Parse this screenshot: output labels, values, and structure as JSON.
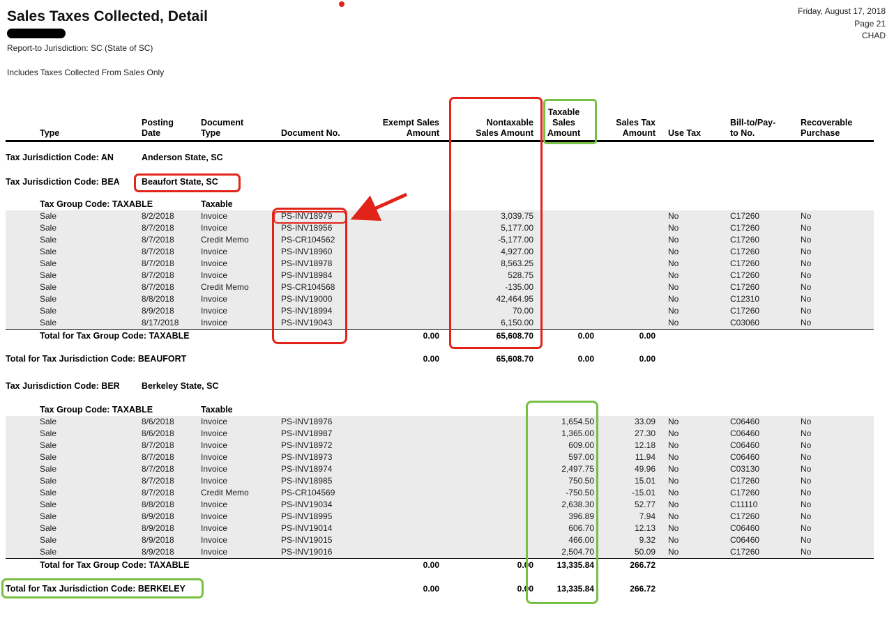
{
  "meta": {
    "title": "Sales Taxes Collected, Detail",
    "date": "Friday, August 17, 2018",
    "page": "Page 21",
    "user": "CHAD",
    "report_to_jurisdiction": "Report-to Jurisdiction: SC  (State of SC)",
    "includes_note": "Includes Taxes Collected From Sales Only"
  },
  "columns": [
    {
      "key": "type",
      "lines": [
        "Type"
      ],
      "align": "left"
    },
    {
      "key": "posting_date",
      "lines": [
        "Posting",
        "Date"
      ],
      "align": "left"
    },
    {
      "key": "document_type",
      "lines": [
        "Document",
        "Type"
      ],
      "align": "left"
    },
    {
      "key": "document_no",
      "lines": [
        "Document No."
      ],
      "align": "left"
    },
    {
      "key": "exempt_sales_amount",
      "lines": [
        "Exempt Sales",
        "Amount"
      ],
      "align": "right"
    },
    {
      "key": "nontaxable_sales_amount",
      "lines": [
        "Nontaxable",
        "Sales Amount"
      ],
      "align": "right"
    },
    {
      "key": "taxable_sales_amount",
      "lines": [
        "Taxable",
        "Sales",
        "Amount"
      ],
      "align": "right"
    },
    {
      "key": "sales_tax_amount",
      "lines": [
        "Sales Tax",
        "Amount"
      ],
      "align": "right"
    },
    {
      "key": "use_tax",
      "lines": [
        "Use Tax"
      ],
      "align": "left"
    },
    {
      "key": "bill_to_pay_to_no",
      "lines": [
        "Bill-to/Pay-",
        "to No."
      ],
      "align": "left"
    },
    {
      "key": "recoverable_purchase",
      "lines": [
        "Recoverable",
        "Purchase"
      ],
      "align": "left"
    }
  ],
  "body": [
    {
      "kind": "jurisdiction",
      "label": "Tax Jurisdiction Code: AN",
      "name": "Anderson State, SC"
    },
    {
      "kind": "jurisdiction",
      "label": "Tax Jurisdiction Code: BEA",
      "name": "Beaufort State, SC"
    },
    {
      "kind": "group",
      "label": "Tax Group Code: TAXABLE",
      "name": "Taxable"
    },
    {
      "kind": "rows",
      "rows": [
        [
          "Sale",
          "8/2/2018",
          "Invoice",
          "PS-INV18979",
          "",
          "3,039.75",
          "",
          "",
          "No",
          "C17260",
          "No"
        ],
        [
          "Sale",
          "8/7/2018",
          "Invoice",
          "PS-INV18956",
          "",
          "5,177.00",
          "",
          "",
          "No",
          "C17260",
          "No"
        ],
        [
          "Sale",
          "8/7/2018",
          "Credit Memo",
          "PS-CR104562",
          "",
          "-5,177.00",
          "",
          "",
          "No",
          "C17260",
          "No"
        ],
        [
          "Sale",
          "8/7/2018",
          "Invoice",
          "PS-INV18960",
          "",
          "4,927.00",
          "",
          "",
          "No",
          "C17260",
          "No"
        ],
        [
          "Sale",
          "8/7/2018",
          "Invoice",
          "PS-INV18978",
          "",
          "8,563.25",
          "",
          "",
          "No",
          "C17260",
          "No"
        ],
        [
          "Sale",
          "8/7/2018",
          "Invoice",
          "PS-INV18984",
          "",
          "528.75",
          "",
          "",
          "No",
          "C17260",
          "No"
        ],
        [
          "Sale",
          "8/7/2018",
          "Credit Memo",
          "PS-CR104568",
          "",
          "-135.00",
          "",
          "",
          "No",
          "C17260",
          "No"
        ],
        [
          "Sale",
          "8/8/2018",
          "Invoice",
          "PS-INV19000",
          "",
          "42,464.95",
          "",
          "",
          "No",
          "C12310",
          "No"
        ],
        [
          "Sale",
          "8/9/2018",
          "Invoice",
          "PS-INV18994",
          "",
          "70.00",
          "",
          "",
          "No",
          "C17260",
          "No"
        ],
        [
          "Sale",
          "8/17/2018",
          "Invoice",
          "PS-INV19043",
          "",
          "6,150.00",
          "",
          "",
          "No",
          "C03060",
          "No"
        ]
      ]
    },
    {
      "kind": "group_total",
      "label": "Total for Tax Group Code: TAXABLE",
      "values": [
        "0.00",
        "65,608.70",
        "0.00",
        "0.00"
      ]
    },
    {
      "kind": "jurisdiction_total",
      "label": "Total for Tax Jurisdiction Code: BEAUFORT",
      "values": [
        "0.00",
        "65,608.70",
        "0.00",
        "0.00"
      ]
    },
    {
      "kind": "jurisdiction",
      "label": "Tax Jurisdiction Code: BER",
      "name": "Berkeley State, SC"
    },
    {
      "kind": "group",
      "label": "Tax Group Code: TAXABLE",
      "name": "Taxable"
    },
    {
      "kind": "rows",
      "rows": [
        [
          "Sale",
          "8/6/2018",
          "Invoice",
          "PS-INV18976",
          "",
          "",
          "1,654.50",
          "33.09",
          "No",
          "C06460",
          "No"
        ],
        [
          "Sale",
          "8/6/2018",
          "Invoice",
          "PS-INV18987",
          "",
          "",
          "1,365.00",
          "27.30",
          "No",
          "C06460",
          "No"
        ],
        [
          "Sale",
          "8/7/2018",
          "Invoice",
          "PS-INV18972",
          "",
          "",
          "609.00",
          "12.18",
          "No",
          "C06460",
          "No"
        ],
        [
          "Sale",
          "8/7/2018",
          "Invoice",
          "PS-INV18973",
          "",
          "",
          "597.00",
          "11.94",
          "No",
          "C06460",
          "No"
        ],
        [
          "Sale",
          "8/7/2018",
          "Invoice",
          "PS-INV18974",
          "",
          "",
          "2,497.75",
          "49.96",
          "No",
          "C03130",
          "No"
        ],
        [
          "Sale",
          "8/7/2018",
          "Invoice",
          "PS-INV18985",
          "",
          "",
          "750.50",
          "15.01",
          "No",
          "C17260",
          "No"
        ],
        [
          "Sale",
          "8/7/2018",
          "Credit Memo",
          "PS-CR104569",
          "",
          "",
          "-750.50",
          "-15.01",
          "No",
          "C17260",
          "No"
        ],
        [
          "Sale",
          "8/8/2018",
          "Invoice",
          "PS-INV19034",
          "",
          "",
          "2,638.30",
          "52.77",
          "No",
          "C11110",
          "No"
        ],
        [
          "Sale",
          "8/9/2018",
          "Invoice",
          "PS-INV18995",
          "",
          "",
          "396.89",
          "7.94",
          "No",
          "C17260",
          "No"
        ],
        [
          "Sale",
          "8/9/2018",
          "Invoice",
          "PS-INV19014",
          "",
          "",
          "606.70",
          "12.13",
          "No",
          "C06460",
          "No"
        ],
        [
          "Sale",
          "8/9/2018",
          "Invoice",
          "PS-INV19015",
          "",
          "",
          "466.00",
          "9.32",
          "No",
          "C06460",
          "No"
        ],
        [
          "Sale",
          "8/9/2018",
          "Invoice",
          "PS-INV19016",
          "",
          "",
          "2,504.70",
          "50.09",
          "No",
          "C17260",
          "No"
        ]
      ]
    },
    {
      "kind": "group_total",
      "label": "Total for Tax Group Code: TAXABLE",
      "values": [
        "0.00",
        "0.00",
        "13,335.84",
        "266.72"
      ]
    },
    {
      "kind": "jurisdiction_total",
      "label": "Total for Tax Jurisdiction Code: BERKELEY",
      "values": [
        "0.00",
        "0.00",
        "13,335.84",
        "266.72"
      ]
    }
  ],
  "annotations": {
    "red_color": "#e2231a",
    "green_color": "#77c043"
  }
}
